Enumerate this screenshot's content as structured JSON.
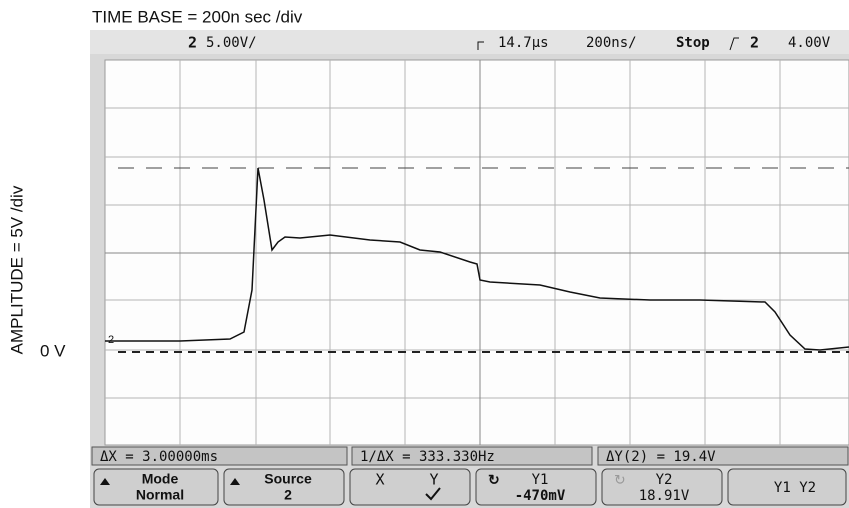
{
  "header": {
    "title": "TIME BASE = 200n sec /div",
    "amplitude_label": "AMPLITUDE = 5V /div",
    "zero_label": "0 V"
  },
  "status_bar": {
    "channel": "2",
    "scale": "5.00V/",
    "delay": "14.7µs",
    "timebase": "200ns/",
    "run_state": "Stop",
    "trigger_channel": "2",
    "trigger_level": "4.00V"
  },
  "measurements": [
    "ΔX = 3.00000ms",
    "1/ΔX = 333.330Hz",
    "ΔY(2) = 19.4V"
  ],
  "softkeys": [
    {
      "label": "Mode",
      "value": "Normal"
    },
    {
      "label": "Source",
      "value": "2"
    },
    {
      "label": "X",
      "value": "Y"
    },
    {
      "label": "Y1",
      "value": "-470mV"
    },
    {
      "label": "Y2",
      "value": "18.91V"
    },
    {
      "label": "Y1 Y2"
    }
  ]
}
